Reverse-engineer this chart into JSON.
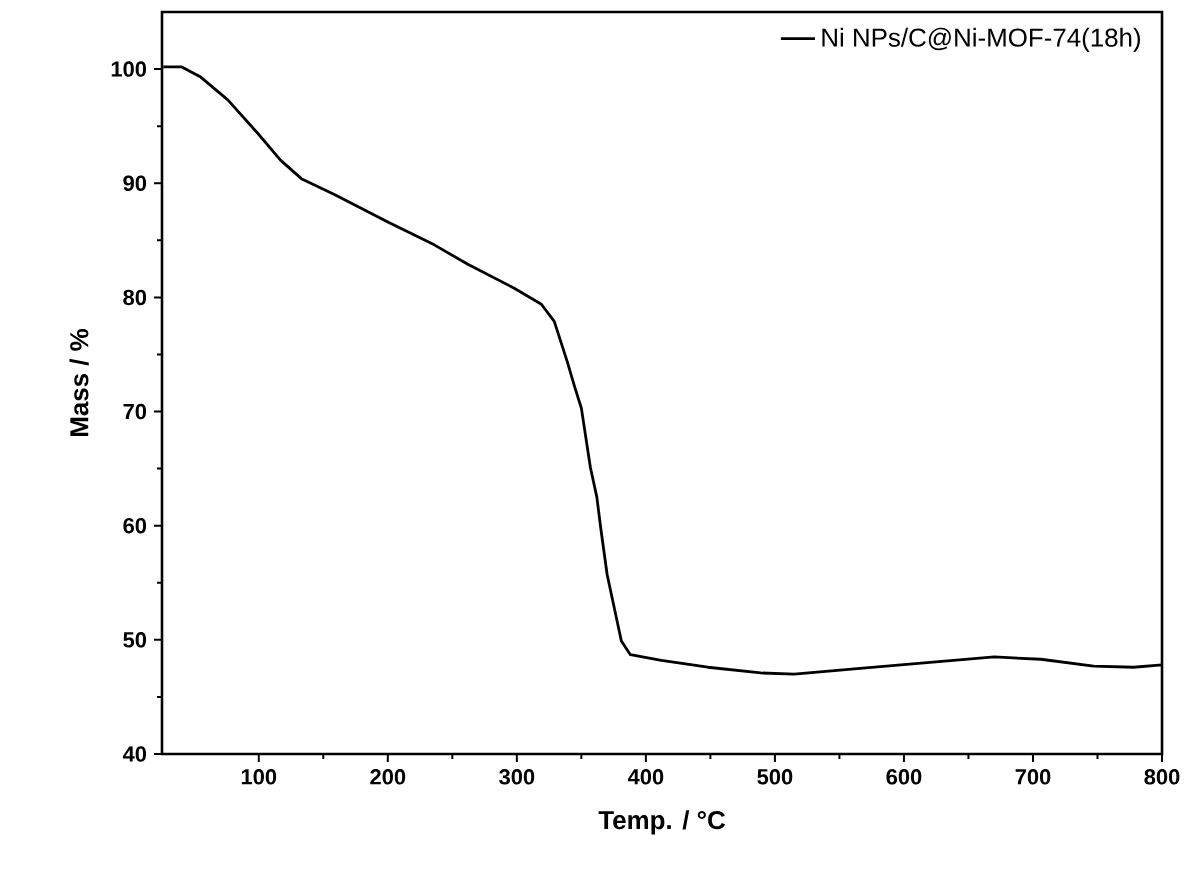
{
  "chart_data": {
    "type": "line",
    "xlabel": "Temp. / °C",
    "ylabel": "Mass / %",
    "xlim": [
      25,
      800
    ],
    "ylim": [
      40,
      105
    ],
    "xticks": [
      100,
      200,
      300,
      400,
      500,
      600,
      700,
      800
    ],
    "yticks": [
      40,
      50,
      60,
      70,
      80,
      90,
      100
    ],
    "legend": "top right",
    "grid": false,
    "series": [
      {
        "name": "Ni NPs/C@Ni-MOF-74(18h)",
        "color": "#000000",
        "x": [
          26,
          40,
          55,
          76,
          99,
          117,
          133,
          159,
          200,
          236,
          262,
          298,
          319,
          329,
          339,
          345,
          350,
          357,
          362,
          365,
          370,
          381,
          388,
          412,
          448,
          489,
          515,
          566,
          618,
          670,
          706,
          747,
          778,
          800
        ],
        "values": [
          100.2,
          100.2,
          99.3,
          97.3,
          94.4,
          92,
          90.4,
          89,
          86.6,
          84.6,
          82.9,
          80.8,
          79.4,
          77.9,
          74.4,
          72.1,
          70.3,
          65.1,
          62.5,
          59.8,
          55.7,
          49.9,
          48.7,
          48.2,
          47.6,
          47.1,
          47.0,
          47.5,
          48.0,
          48.5,
          48.3,
          47.7,
          47.6,
          47.8
        ]
      }
    ]
  }
}
